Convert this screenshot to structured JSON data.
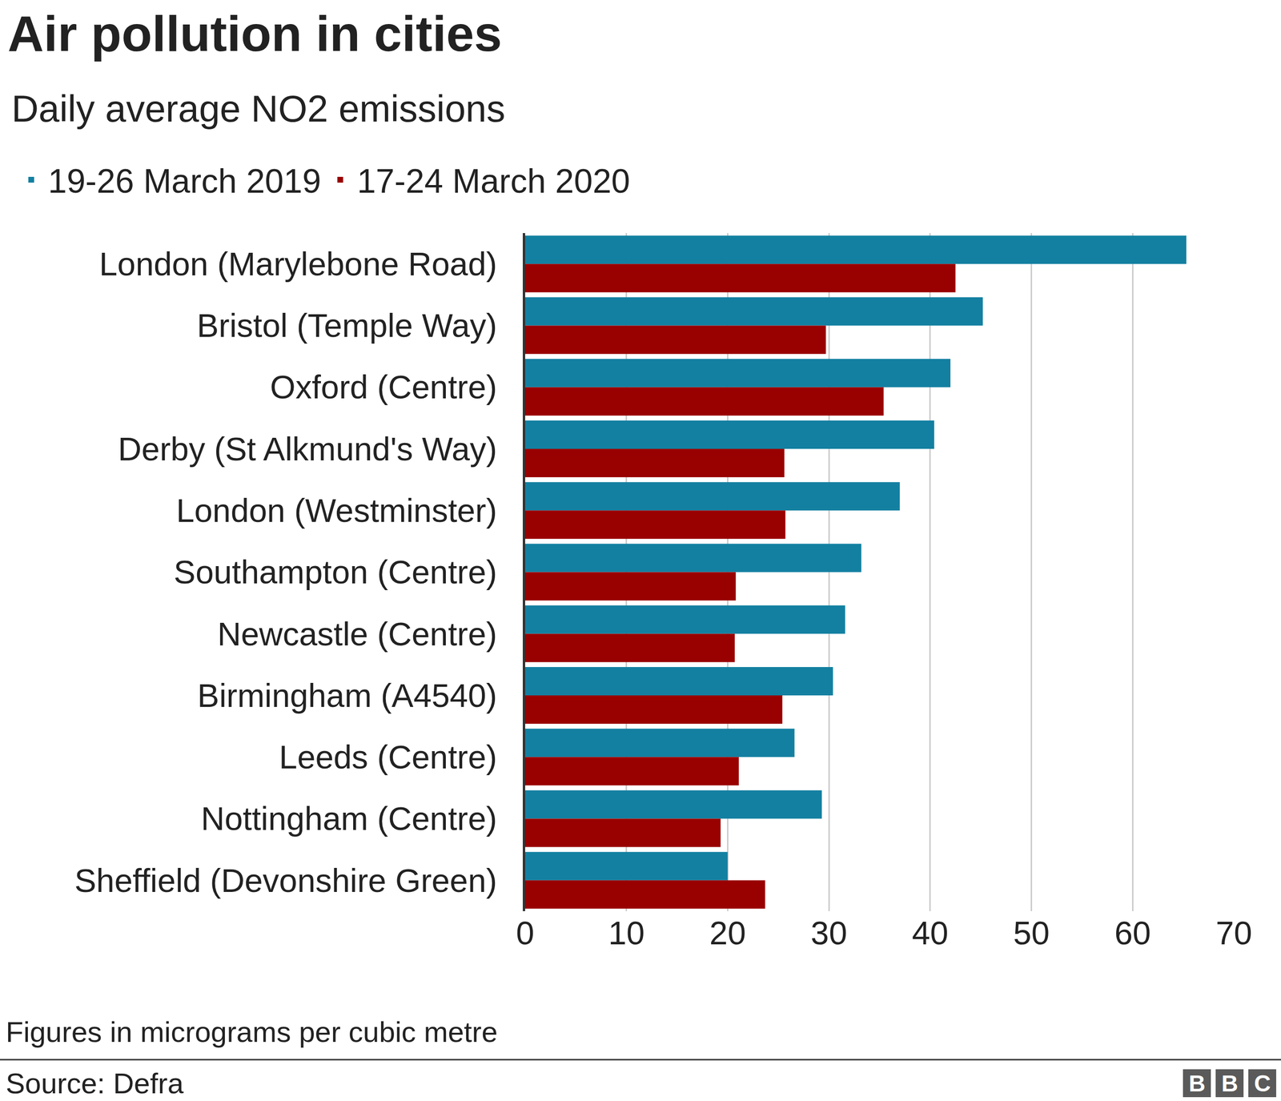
{
  "chart_data": {
    "type": "bar",
    "orientation": "horizontal",
    "title": "Air pollution in cities",
    "subtitle": "Daily average NO2 emissions",
    "categories": [
      "London (Marylebone Road)",
      "Bristol (Temple Way)",
      "Oxford (Centre)",
      "Derby (St Alkmund's Way)",
      "London (Westminster)",
      "Southampton (Centre)",
      "Newcastle (Centre)",
      "Birmingham (A4540)",
      "Leeds (Centre)",
      "Nottingham (Centre)",
      "Sheffield (Devonshire Green)"
    ],
    "series": [
      {
        "name": "19-26 March 2019",
        "color": "#1380a1",
        "values": [
          65.3,
          45.2,
          42.0,
          40.4,
          37.0,
          33.2,
          31.6,
          30.4,
          26.6,
          29.3,
          20.0
        ]
      },
      {
        "name": "17-24 March 2020",
        "color": "#990000",
        "values": [
          42.5,
          29.7,
          35.4,
          25.6,
          25.7,
          20.8,
          20.7,
          25.4,
          21.1,
          19.3,
          23.7
        ]
      }
    ],
    "xlim": [
      0,
      70
    ],
    "xticks": [
      0,
      10,
      20,
      30,
      40,
      50,
      60,
      70
    ],
    "grid": true,
    "legend": "top-left",
    "note": "Figures in micrograms per cubic metre",
    "source": "Source: Defra",
    "logo": "BBC"
  }
}
